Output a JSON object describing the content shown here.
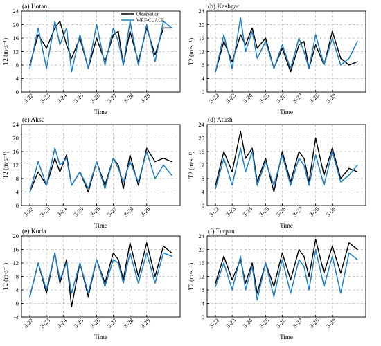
{
  "chart_data": [
    {
      "type": "line",
      "title": "(a) Hotan",
      "xlabel": "Time",
      "ylabel": "T2 (m·s⁻¹)",
      "ylim": [
        0,
        24
      ],
      "y_ticks": [
        0,
        4,
        8,
        12,
        16,
        20,
        24
      ],
      "x_ticks": [
        "3-22",
        "3-23",
        "3-24",
        "3-25",
        "3-26",
        "3-27",
        "3-28",
        "3-29"
      ],
      "grid": true,
      "legend": {
        "placement": "top-right",
        "entries": [
          "Observation",
          "WRF-CUACE"
        ]
      },
      "series": [
        {
          "name": "Observation",
          "color": "#000000",
          "x": [
            3.0,
            3.5,
            4.0,
            4.5,
            4.8,
            5.2,
            5.5,
            6.0,
            6.5,
            7.0,
            7.5,
            8.0,
            8.3,
            8.6,
            9.0,
            9.5,
            10.0,
            10.5,
            11.0,
            11.5
          ],
          "y": [
            8,
            17,
            13,
            19,
            21,
            14,
            10,
            16,
            7,
            16,
            9,
            17,
            18,
            8,
            18,
            9,
            19,
            11,
            19,
            19
          ]
        },
        {
          "name": "WRF-CUACE",
          "color": "#1f7fc4",
          "x": [
            3.0,
            3.5,
            4.0,
            4.5,
            4.8,
            5.2,
            5.5,
            6.0,
            6.5,
            7.0,
            7.5,
            8.0,
            8.3,
            8.6,
            9.0,
            9.5,
            10.0,
            10.5,
            11.0,
            11.5
          ],
          "y": [
            7,
            19,
            7,
            21,
            14,
            19,
            6,
            17,
            7,
            20,
            8,
            19,
            15,
            8,
            21,
            8,
            20,
            9,
            21,
            19
          ]
        }
      ]
    },
    {
      "type": "line",
      "title": "(b) Kashgar",
      "xlabel": "Time",
      "ylabel": "T2 (m·s⁻¹)",
      "ylim": [
        0,
        24
      ],
      "y_ticks": [
        0,
        4,
        8,
        12,
        16,
        20,
        24
      ],
      "x_ticks": [
        "3-22",
        "3-23",
        "3-24",
        "3-25",
        "3-26",
        "3-27",
        "3-28",
        "3-29"
      ],
      "grid": true,
      "series": [
        {
          "name": "Observation",
          "color": "#000000",
          "x": [
            3.0,
            3.5,
            4.0,
            4.5,
            4.8,
            5.2,
            5.5,
            6.0,
            6.5,
            7.0,
            7.5,
            8.0,
            8.3,
            8.6,
            9.0,
            9.5,
            10.0,
            10.5,
            11.0,
            11.5
          ],
          "y": [
            6,
            15,
            9,
            17,
            14,
            19,
            13,
            16,
            7,
            13,
            6,
            14,
            15,
            7,
            14,
            8,
            18,
            10,
            8,
            9
          ]
        },
        {
          "name": "WRF-CUACE",
          "color": "#1f7fc4",
          "x": [
            3.0,
            3.5,
            4.0,
            4.5,
            4.8,
            5.2,
            5.5,
            6.0,
            6.5,
            7.0,
            7.5,
            8.0,
            8.3,
            8.6,
            9.0,
            9.5,
            10.0,
            10.5,
            11.0,
            11.5
          ],
          "y": [
            6,
            17,
            7,
            22,
            12,
            18,
            10,
            15,
            7,
            14,
            7,
            16,
            12,
            7,
            17,
            8,
            16,
            8,
            10,
            15
          ]
        }
      ]
    },
    {
      "type": "line",
      "title": "(c) Aksu",
      "xlabel": "Time",
      "ylabel": "T2 (m·s⁻¹)",
      "ylim": [
        0,
        24
      ],
      "y_ticks": [
        0,
        4,
        8,
        12,
        16,
        20,
        24
      ],
      "x_ticks": [
        "3-22",
        "3-23",
        "3-24",
        "3-25",
        "3-26",
        "3-27",
        "3-28",
        "3-29"
      ],
      "grid": true,
      "series": [
        {
          "name": "Observation",
          "color": "#000000",
          "x": [
            3.0,
            3.5,
            4.0,
            4.5,
            4.8,
            5.2,
            5.5,
            6.0,
            6.5,
            7.0,
            7.5,
            8.0,
            8.3,
            8.6,
            9.0,
            9.5,
            10.0,
            10.5,
            11.0,
            11.5
          ],
          "y": [
            4,
            10,
            6,
            14,
            10,
            15,
            6,
            10,
            4,
            13,
            6,
            14,
            12,
            5,
            15,
            6,
            17,
            13,
            14,
            13
          ]
        },
        {
          "name": "WRF-CUACE",
          "color": "#1f7fc4",
          "x": [
            3.0,
            3.5,
            4.0,
            4.5,
            4.8,
            5.2,
            5.5,
            6.0,
            6.5,
            7.0,
            7.5,
            8.0,
            8.3,
            8.6,
            9.0,
            9.5,
            10.0,
            10.5,
            11.0,
            11.5
          ],
          "y": [
            4,
            13,
            6,
            17,
            12,
            14,
            6,
            10,
            5,
            13,
            5,
            14,
            11,
            7,
            13,
            7,
            16,
            8,
            12,
            9
          ]
        }
      ]
    },
    {
      "type": "line",
      "title": "(d) Atush",
      "xlabel": "Time",
      "ylabel": "T2 (m·s⁻¹)",
      "ylim": [
        0,
        24
      ],
      "y_ticks": [
        0,
        4,
        8,
        12,
        16,
        20,
        24
      ],
      "x_ticks": [
        "3-22",
        "3-23",
        "3-24",
        "3-25",
        "3-26",
        "3-27",
        "3-28",
        "3-29"
      ],
      "grid": true,
      "series": [
        {
          "name": "Observation",
          "color": "#000000",
          "x": [
            3.0,
            3.5,
            4.0,
            4.5,
            4.8,
            5.2,
            5.5,
            6.0,
            6.5,
            7.0,
            7.5,
            8.0,
            8.3,
            8.6,
            9.0,
            9.5,
            10.0,
            10.5,
            11.0,
            11.5
          ],
          "y": [
            6,
            16,
            10,
            22,
            14,
            17,
            7,
            14,
            4,
            16,
            7,
            16,
            14,
            7,
            20,
            9,
            17,
            8,
            11,
            10
          ]
        },
        {
          "name": "WRF-CUACE",
          "color": "#1f7fc4",
          "x": [
            3.0,
            3.5,
            4.0,
            4.5,
            4.8,
            5.2,
            5.5,
            6.0,
            6.5,
            7.0,
            7.5,
            8.0,
            8.3,
            8.6,
            9.0,
            9.5,
            10.0,
            10.5,
            11.0,
            11.5
          ],
          "y": [
            5,
            14,
            6,
            17,
            10,
            16,
            6,
            13,
            6,
            15,
            6,
            14,
            12,
            6,
            15,
            6,
            16,
            7,
            9,
            12
          ]
        }
      ]
    },
    {
      "type": "line",
      "title": "(e) Korla",
      "xlabel": "Time",
      "ylabel": "T2 (m·s⁻¹)",
      "ylim": [
        -4,
        20
      ],
      "y_ticks": [
        -4,
        0,
        4,
        8,
        12,
        16,
        20
      ],
      "x_ticks": [
        "3-22",
        "3-23",
        "3-24",
        "3-25",
        "3-26",
        "3-27",
        "3-28",
        "3-29"
      ],
      "grid": true,
      "series": [
        {
          "name": "Observation",
          "color": "#000000",
          "x": [
            3.0,
            3.5,
            4.0,
            4.5,
            4.8,
            5.2,
            5.5,
            6.0,
            6.5,
            7.0,
            7.5,
            8.0,
            8.3,
            8.6,
            9.0,
            9.5,
            10.0,
            10.5,
            11.0,
            11.5
          ],
          "y": [
            2,
            12,
            3,
            15,
            6,
            13,
            -1,
            12,
            2,
            13,
            6,
            15,
            13,
            7,
            18,
            8,
            18,
            8,
            17,
            15
          ]
        },
        {
          "name": "WRF-CUACE",
          "color": "#1f7fc4",
          "x": [
            3.0,
            3.5,
            4.0,
            4.5,
            4.8,
            5.2,
            5.5,
            6.0,
            6.5,
            7.0,
            7.5,
            8.0,
            8.3,
            8.6,
            9.0,
            9.5,
            10.0,
            10.5,
            11.0,
            11.5
          ],
          "y": [
            2,
            12,
            4,
            15,
            7,
            12,
            3,
            12,
            3,
            13,
            5,
            13,
            12,
            6,
            15,
            6,
            15,
            6,
            15,
            14
          ]
        }
      ]
    },
    {
      "type": "line",
      "title": "(f) Turpan",
      "xlabel": "Time",
      "ylabel": "T2 (m·s⁻¹)",
      "ylim": [
        0,
        24
      ],
      "y_ticks": [
        0,
        4,
        8,
        12,
        16,
        20,
        24
      ],
      "x_ticks": [
        "3-22",
        "3-23",
        "3-24",
        "3-25",
        "3-26",
        "3-27",
        "3-28",
        "3-29"
      ],
      "grid": true,
      "series": [
        {
          "name": "Observation",
          "color": "#000000",
          "x": [
            3.0,
            3.5,
            4.0,
            4.5,
            4.8,
            5.2,
            5.5,
            6.0,
            6.5,
            7.0,
            7.5,
            8.0,
            8.3,
            8.6,
            9.0,
            9.5,
            10.0,
            10.5,
            11.0,
            11.5
          ],
          "y": [
            10,
            18,
            11,
            17,
            10,
            16,
            7,
            16,
            9,
            19,
            11,
            20,
            18,
            12,
            23,
            13,
            21,
            13,
            22,
            20
          ]
        },
        {
          "name": "WRF-CUACE",
          "color": "#1f7fc4",
          "x": [
            3.0,
            3.5,
            4.0,
            4.5,
            4.8,
            5.2,
            5.5,
            6.0,
            6.5,
            7.0,
            7.5,
            8.0,
            8.3,
            8.6,
            9.0,
            9.5,
            10.0,
            10.5,
            11.0,
            11.5
          ],
          "y": [
            9,
            16,
            8,
            18,
            8,
            15,
            5,
            16,
            6,
            17,
            7,
            17,
            15,
            8,
            20,
            9,
            18,
            7,
            19,
            17
          ]
        }
      ]
    }
  ]
}
